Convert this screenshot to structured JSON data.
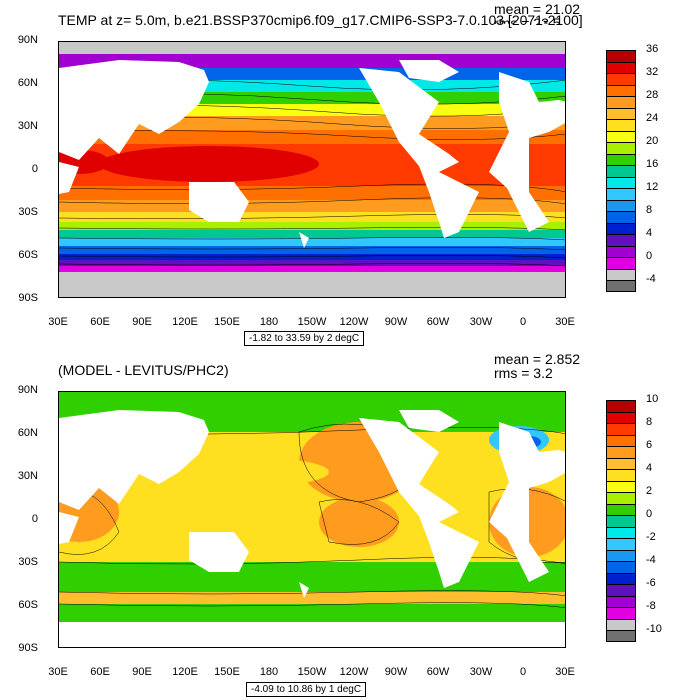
{
  "panels": [
    {
      "title": "TEMP at z=   5.0m, b.e21.BSSP370cmip6.f09_g17.CMIP6-SSP3-7.0.103 [2071-2100]",
      "mean": "mean = 21.02",
      "rms": "rms = 23.5",
      "range": "-1.82 to 33.59 by 2 degC",
      "lat_labels": [
        "90N",
        "60N",
        "30N",
        "0",
        "30S",
        "60S",
        "90S"
      ],
      "lon_labels": [
        "30E",
        "60E",
        "90E",
        "120E",
        "150E",
        "180",
        "150W",
        "120W",
        "90W",
        "60W",
        "30W",
        "0",
        "30E"
      ],
      "colorbar": {
        "labels": [
          "36",
          "32",
          "28",
          "24",
          "20",
          "16",
          "12",
          "8",
          "4",
          "0",
          "-4"
        ],
        "colors": [
          "#b40000",
          "#e00000",
          "#ff3a00",
          "#ff7000",
          "#ff9c20",
          "#ffbe30",
          "#ffe020",
          "#f8ff10",
          "#a8f000",
          "#30d000",
          "#00c890",
          "#00e8e8",
          "#30c8ff",
          "#1898f0",
          "#0064e8",
          "#0020d0",
          "#6010c0",
          "#a000d0",
          "#e000e0",
          "#c8c8c8",
          "#707070"
        ]
      }
    },
    {
      "title": "(MODEL - LEVITUS/PHC2)",
      "mean": "mean = 2.852",
      "rms": "rms = 3.2",
      "range": "-4.09 to 10.86 by 1 degC",
      "lat_labels": [
        "90N",
        "60N",
        "30N",
        "0",
        "30S",
        "60S",
        "90S"
      ],
      "lon_labels": [
        "30E",
        "60E",
        "90E",
        "120E",
        "150E",
        "180",
        "150W",
        "120W",
        "90W",
        "60W",
        "30W",
        "0",
        "30E"
      ],
      "colorbar": {
        "labels": [
          "10",
          "8",
          "6",
          "4",
          "2",
          "0",
          "-2",
          "-4",
          "-6",
          "-8",
          "-10"
        ],
        "colors": [
          "#b40000",
          "#e00000",
          "#ff3a00",
          "#ff7000",
          "#ff9c20",
          "#ffbe30",
          "#ffe020",
          "#f8ff10",
          "#a8f000",
          "#30d000",
          "#00c890",
          "#00e8e8",
          "#30c8ff",
          "#1898f0",
          "#0064e8",
          "#0020d0",
          "#6010c0",
          "#a000d0",
          "#e000e0",
          "#c8c8c8",
          "#707070"
        ]
      }
    }
  ]
}
